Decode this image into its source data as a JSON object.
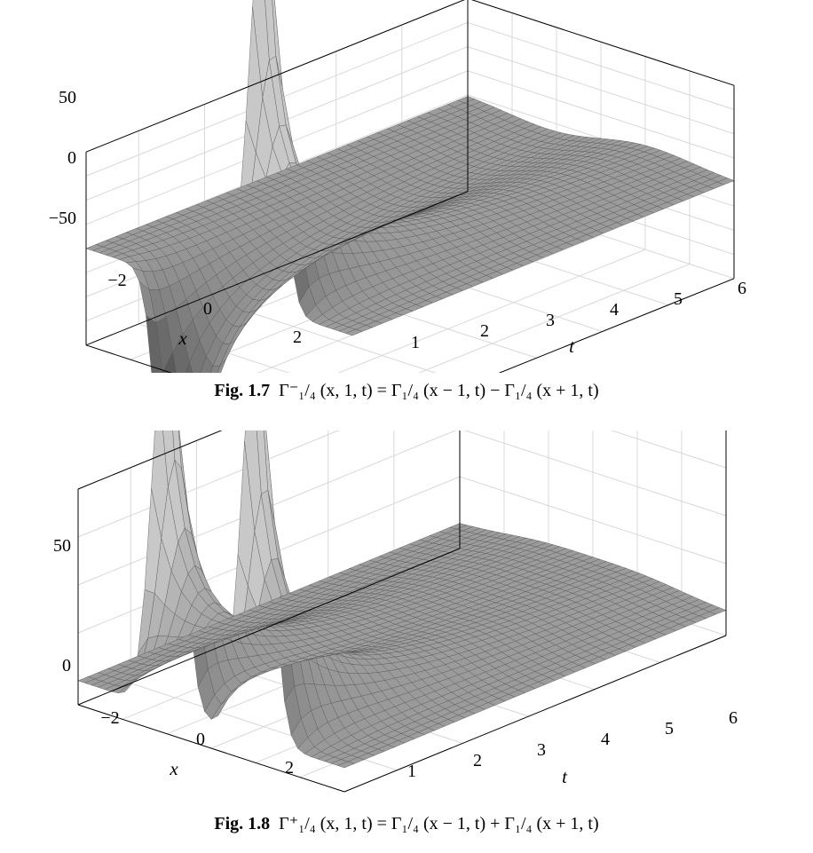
{
  "figures": [
    {
      "id": "fig1",
      "caption": {
        "label": "Fig. 1.7",
        "formula": "Γ⁻₁/₄ (x, 1, t) = Γ₁/₄ (x − 1, t) − Γ₁/₄ (x + 1, t)"
      },
      "z_ticks": [
        "50",
        "0",
        "−50"
      ],
      "x_ticks": [
        "−2",
        "0",
        "2"
      ],
      "t_ticks": [
        "1",
        "2",
        "3",
        "4",
        "5",
        "6"
      ],
      "x_label": "x",
      "t_label": "t"
    },
    {
      "id": "fig2",
      "caption": {
        "label": "Fig. 1.8",
        "formula": "Γ⁺₁/₄ (x, 1, t) = Γ₁/₄ (x − 1, t) + Γ₁/₄ (x + 1, t)"
      },
      "z_ticks": [
        "50",
        "0"
      ],
      "x_ticks": [
        "−2",
        "0",
        "2"
      ],
      "t_ticks": [
        "1",
        "2",
        "3",
        "4",
        "5",
        "6"
      ],
      "x_label": "x",
      "t_label": "t"
    }
  ],
  "chart_data": [
    {
      "type": "surface",
      "title": "Fig. 1.7",
      "xlabel": "x",
      "ylabel": "t",
      "xlim": [
        -3,
        3
      ],
      "tlim": [
        0.2,
        6
      ],
      "zlim": [
        -80,
        80
      ],
      "z_ticks": [
        50,
        0,
        -50
      ],
      "x_ticks": [
        -2,
        0,
        2
      ],
      "t_ticks": [
        1,
        2,
        3,
        4,
        5,
        6
      ],
      "function": "Γ1/4(x−1,t) − Γ1/4(x+1,t)",
      "sign": -1,
      "grid": true,
      "surface_color": "#b5b5b5"
    },
    {
      "type": "surface",
      "title": "Fig. 1.8",
      "xlabel": "x",
      "ylabel": "t",
      "xlim": [
        -3,
        3
      ],
      "tlim": [
        0.2,
        6
      ],
      "zlim": [
        -10,
        80
      ],
      "z_ticks": [
        50,
        0
      ],
      "x_ticks": [
        -2,
        0,
        2
      ],
      "t_ticks": [
        1,
        2,
        3,
        4,
        5,
        6
      ],
      "function": "Γ1/4(x−1,t) + Γ1/4(x+1,t)",
      "sign": 1,
      "grid": true,
      "surface_color": "#b5b5b5"
    }
  ]
}
